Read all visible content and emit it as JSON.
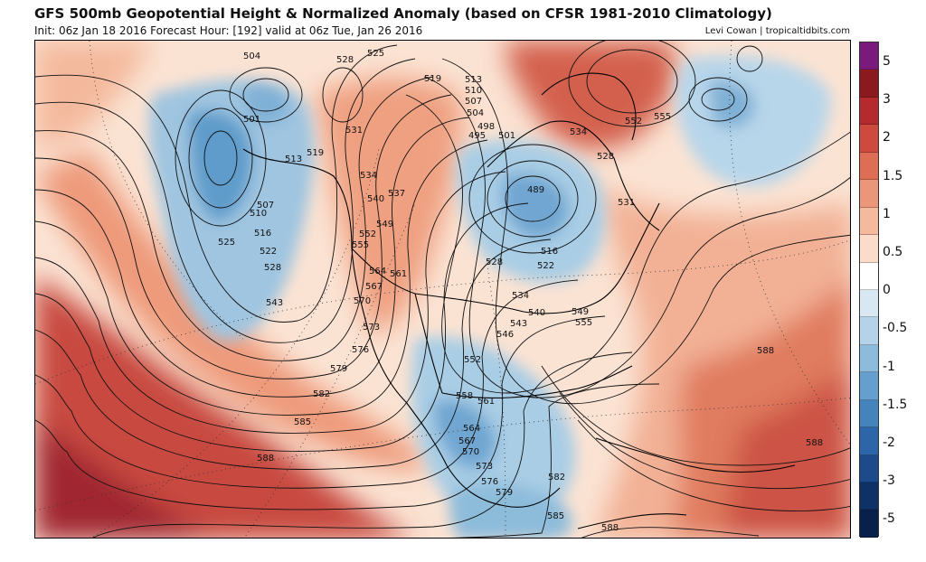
{
  "header": {
    "title": "GFS 500mb Geopotential Height & Normalized Anomaly (based on CFSR 1981-2010 Climatology)",
    "subtitle": "Init: 06z Jan 18 2016   Forecast Hour: [192]   valid at 06z Tue, Jan 26 2016",
    "credit": "Levi Cowan | tropicaltidbits.com"
  },
  "map": {
    "region": "North America / North Pacific / North Atlantic",
    "projection": "polar stereographic",
    "colors": {
      "strong_positive": "#a1242c",
      "positive": "#e3876a",
      "weak_positive": "#f7d3bd",
      "neutral": "#ffffff",
      "weak_negative": "#cfe3ef",
      "negative": "#8dbcdb",
      "strong_negative": "#4f90c4"
    },
    "contour_labels": [
      "504",
      "501",
      "507",
      "510",
      "516",
      "525",
      "522",
      "528",
      "543",
      "513",
      "519",
      "528",
      "531",
      "534",
      "540",
      "537",
      "549",
      "552",
      "555",
      "564",
      "561",
      "567",
      "570",
      "573",
      "576",
      "579",
      "582",
      "585",
      "588",
      "525",
      "519",
      "513",
      "510",
      "507",
      "504",
      "498",
      "495",
      "501",
      "489",
      "534",
      "528",
      "552",
      "555",
      "531",
      "516",
      "522",
      "528",
      "534",
      "540",
      "546",
      "543",
      "549",
      "555",
      "552",
      "558",
      "561",
      "564",
      "567",
      "570",
      "573",
      "576",
      "579",
      "582",
      "585",
      "588",
      "588",
      "588"
    ]
  },
  "colorbar": {
    "labels": [
      "5",
      "3",
      "2",
      "1.5",
      "1",
      "0.5",
      "0",
      "-0.5",
      "-1",
      "-1.5",
      "-2",
      "-3",
      "-5"
    ],
    "colors": [
      "#7a1a7c",
      "#8b1a1e",
      "#b52a2e",
      "#cf4a3e",
      "#de6d55",
      "#ec9679",
      "#f5b99d",
      "#fbdccb",
      "#ffffff",
      "#d8e8f2",
      "#b4d3e8",
      "#8cbbdc",
      "#659fcd",
      "#4583bd",
      "#2d66a8",
      "#1c4a8b",
      "#0f3266",
      "#08204a"
    ]
  }
}
